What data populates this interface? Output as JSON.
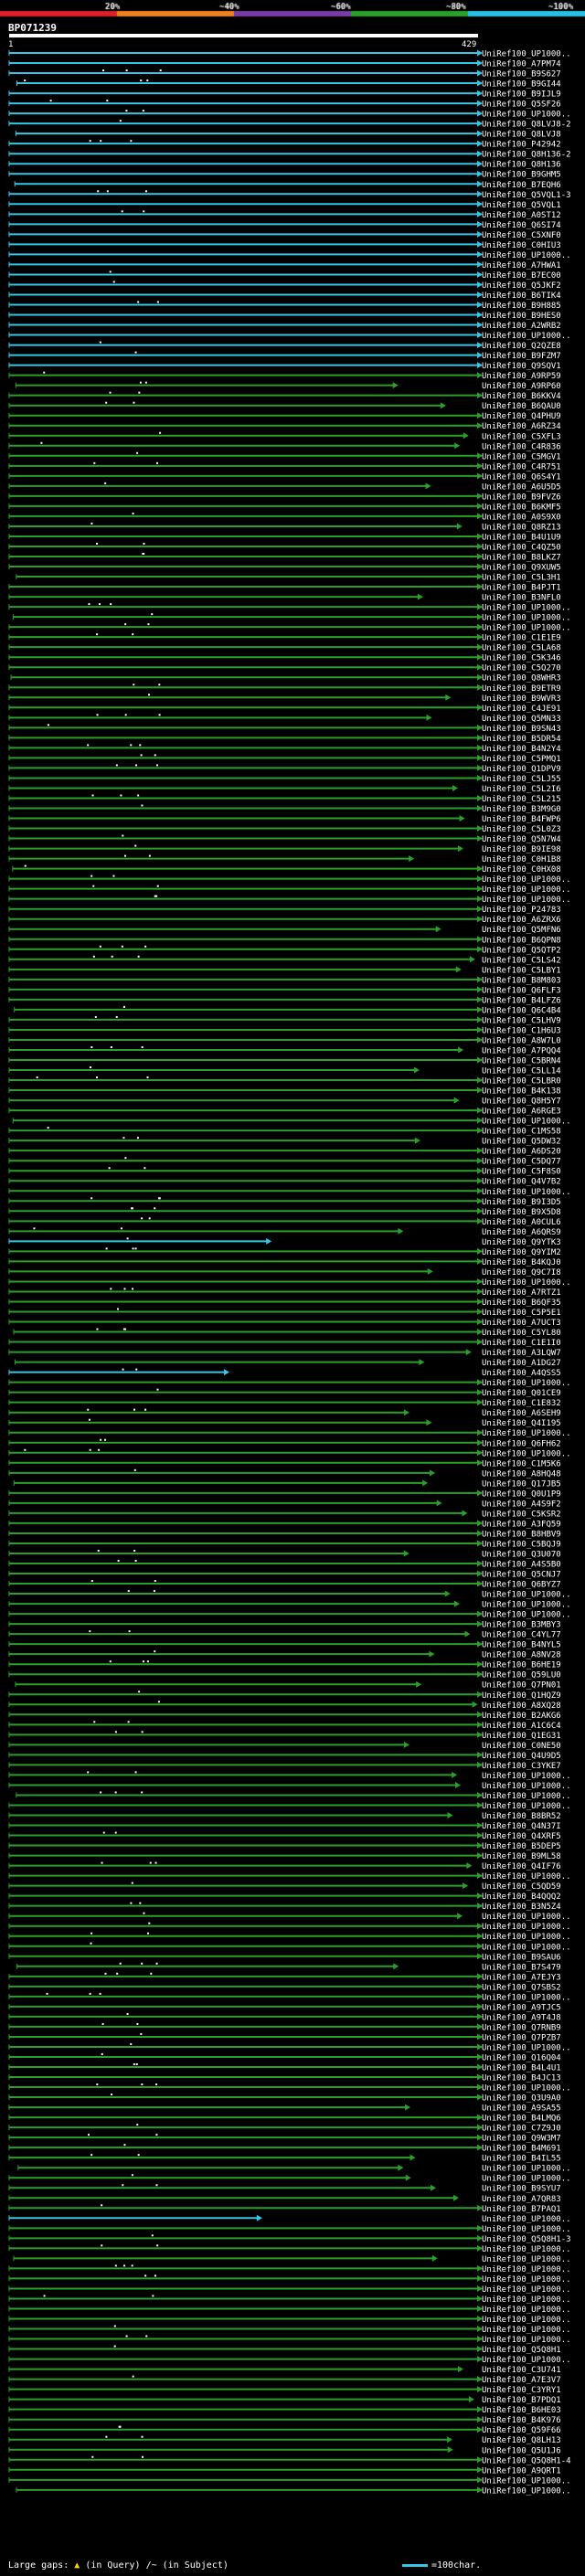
{
  "title": "BP071239",
  "legend": {
    "ticks": [
      "20%",
      "~40%",
      "~60%",
      "~80%",
      "~100%"
    ],
    "colors": [
      "#e01e2a",
      "#f07f1e",
      "#7b3ba6",
      "#2aa02a",
      "#28bfe3"
    ]
  },
  "query_range": {
    "start_label": "1",
    "end_label": "429",
    "length": 429
  },
  "footer": {
    "gaps_label": "Large gaps:",
    "gaps_query": "(in Query)",
    "gaps_subject": "/~ (in Subject)",
    "scale_label": "=100char."
  },
  "chart_data": {
    "type": "alignment-overview",
    "title": "BP071239",
    "query_length": 429,
    "hits": [
      "UniRef100_UP1000..",
      "UniRef100_A7PM74",
      "UniRef100_B9S627",
      "UniRef100_B9GI44",
      "UniRef100_B9IJL9",
      "UniRef100_Q5SF26",
      "UniRef100_UP1000..",
      "UniRef100_Q8LVJ8-2",
      "UniRef100_Q8LVJ8",
      "UniRef100_P42942",
      "UniRef100_Q8H136-2",
      "UniRef100_Q8H136",
      "UniRef100_B9GHM5",
      "UniRef100_B7EQH6",
      "UniRef100_Q5VQL1-3",
      "UniRef100_Q5VQL1",
      "UniRef100_A0ST12",
      "UniRef100_Q6SI74",
      "UniRef100_C5XNF0",
      "UniRef100_C0HIU3",
      "UniRef100_UP1000..",
      "UniRef100_A7HWA1",
      "UniRef100_B7EC00",
      "UniRef100_Q5JKF2",
      "UniRef100_B6TIK4",
      "UniRef100_B9H885",
      "UniRef100_B9HES0",
      "UniRef100_A2WRB2",
      "UniRef100_UP1000..",
      "UniRef100_Q2QZE8",
      "UniRef100_B9FZM7",
      "UniRef100_Q9SQV1",
      "UniRef100_A9RP59",
      "UniRef100_A9RP60",
      "UniRef100_B6KKV4",
      "UniRef100_B6QAU0",
      "UniRef100_Q4PHU9",
      "UniRef100_A6RZ34",
      "UniRef100_C5XFL3",
      "UniRef100_C4R836",
      "UniRef100_C5MGV1",
      "UniRef100_C4R751",
      "UniRef100_Q6S4Y1",
      "UniRef100_A6U5D5",
      "UniRef100_B9FVZ6",
      "UniRef100_B6KMF5",
      "UniRef100_A0S9X0",
      "UniRef100_Q8RZ13",
      "UniRef100_B4U1U9",
      "UniRef100_C4QZ50",
      "UniRef100_B8LKZ7",
      "UniRef100_Q9XUW5",
      "UniRef100_C5L3H1",
      "UniRef100_B4PJT1",
      "UniRef100_B3NFL0",
      "UniRef100_UP1000..",
      "UniRef100_UP1000..",
      "UniRef100_UP1000..",
      "UniRef100_C1E1E9",
      "UniRef100_C5LA68",
      "UniRef100_C5K346",
      "UniRef100_C5Q270",
      "UniRef100_Q8WHR3",
      "UniRef100_B9ETR9",
      "UniRef100_B9WVR3",
      "UniRef100_C4JE91",
      "UniRef100_Q5MN33",
      "UniRef100_B9SN43",
      "UniRef100_B5DR54",
      "UniRef100_B4N2Y4",
      "UniRef100_C5PMQ1",
      "UniRef100_Q1DPV9",
      "UniRef100_C5LJ55",
      "UniRef100_C5L2I6",
      "UniRef100_C5L215",
      "UniRef100_B3M9G0",
      "UniRef100_B4FWP6",
      "UniRef100_C5L0Z3",
      "UniRef100_Q5N7W4",
      "UniRef100_B9IE98",
      "UniRef100_C0H1B8",
      "UniRef100_C0HX08",
      "UniRef100_UP1000..",
      "UniRef100_UP1000..",
      "UniRef100_UP1000..",
      "UniRef100_P24783",
      "UniRef100_A6ZRX6",
      "UniRef100_Q5MFN6",
      "UniRef100_B6QPN8",
      "UniRef100_Q5QTP2",
      "UniRef100_C5LS42",
      "UniRef100_C5LBY1",
      "UniRef100_B8M803",
      "UniRef100_Q6FLF3",
      "UniRef100_B4LFZ6",
      "UniRef100_Q6C4B4",
      "UniRef100_C5LHV9",
      "UniRef100_C1H6U3",
      "UniRef100_A8W7L0",
      "UniRef100_A7PQQ4",
      "UniRef100_C5BRN4",
      "UniRef100_C5LL14",
      "UniRef100_C5LBR0",
      "UniRef100_B4K138",
      "UniRef100_Q8H5Y7",
      "UniRef100_A6RGE3",
      "UniRef100_UP1000..",
      "UniRef100_C1MS58",
      "UniRef100_Q5DW32",
      "UniRef100_A6DS20",
      "UniRef100_C5DQ77",
      "UniRef100_C5F8S0",
      "UniRef100_Q4V7B2",
      "UniRef100_UP1000..",
      "UniRef100_B9I3D5",
      "UniRef100_B9X5D8",
      "UniRef100_A0CUL6",
      "UniRef100_A6QRS9",
      "UniRef100_Q9YTK3",
      "UniRef100_Q9YIM2",
      "UniRef100_B4KQJ0",
      "UniRef100_Q9C7I8",
      "UniRef100_UP1000..",
      "UniRef100_A7RTZ1",
      "UniRef100_B6QF35",
      "UniRef100_C5P5E1",
      "UniRef100_A7UCT3",
      "UniRef100_C5YL80",
      "UniRef100_C1E1I0",
      "UniRef100_A3LQW7",
      "UniRef100_A1DG27",
      "UniRef100_A4QSS5",
      "UniRef100_UP1000..",
      "UniRef100_Q01CE9",
      "UniRef100_C1E832",
      "UniRef100_A6SEH9",
      "UniRef100_Q4I195",
      "UniRef100_UP1000..",
      "UniRef100_Q6FH62",
      "UniRef100_UP1000..",
      "UniRef100_C1M5K6",
      "UniRef100_A8HQ48",
      "UniRef100_Q17JB5",
      "UniRef100_Q0U1P9",
      "UniRef100_A4S9F2",
      "UniRef100_C5KSR2",
      "UniRef100_A3FQ59",
      "UniRef100_B8HBV9",
      "UniRef100_C5BQJ9",
      "UniRef100_Q3U070",
      "UniRef100_A4S5B0",
      "UniRef100_Q5CNJ7",
      "UniRef100_Q6BYZ7",
      "UniRef100_UP1000..",
      "UniRef100_UP1000..",
      "UniRef100_UP1000..",
      "UniRef100_B3MBY3",
      "UniRef100_C4YL77",
      "UniRef100_B4NYL5",
      "UniRef100_A8NV28",
      "UniRef100_B6HE19",
      "UniRef100_Q59LU0",
      "UniRef100_Q7PN01",
      "UniRef100_Q1HQZ9",
      "UniRef100_A8XQ28",
      "UniRef100_B2AKG6",
      "UniRef100_A1C6C4",
      "UniRef100_Q1EG31",
      "UniRef100_C0NE50",
      "UniRef100_Q4U9D5",
      "UniRef100_C3YKE7",
      "UniRef100_UP1000..",
      "UniRef100_UP1000..",
      "UniRef100_UP1000..",
      "UniRef100_UP1000..",
      "UniRef100_B8BR52",
      "UniRef100_Q4N37I",
      "UniRef100_Q4XRF5",
      "UniRef100_B5DEP5",
      "UniRef100_B9ML58",
      "UniRef100_Q4IF76",
      "UniRef100_UP1000..",
      "UniRef100_C5QD59",
      "UniRef100_B4QQQ2",
      "UniRef100_B3N5Z4",
      "UniRef100_UP1000..",
      "UniRef100_UP1000..",
      "UniRef100_UP1000..",
      "UniRef100_UP1000..",
      "UniRef100_B9SAU6",
      "UniRef100_B7S479",
      "UniRef100_A7EJY3",
      "UniRef100_Q7SBS2",
      "UniRef100_UP1000..",
      "UniRef100_A9TJC5",
      "UniRef100_A9T4J8",
      "UniRef100_Q7RNB9",
      "UniRef100_Q7PZB7",
      "UniRef100_UP1000..",
      "UniRef100_Q16Q04",
      "UniRef100_B4L4U1",
      "UniRef100_B4JC13",
      "UniRef100_UP1000..",
      "UniRef100_Q3U9A0",
      "UniRef100_A9SA55",
      "UniRef100_B4LMQ6",
      "UniRef100_C7Z9J0",
      "UniRef100_Q9W3M7",
      "UniRef100_B4M691",
      "UniRef100_B4IL55",
      "UniRef100_UP1000..",
      "UniRef100_UP1000..",
      "UniRef100_B9SYU7",
      "UniRef100_A7QR83",
      "UniRef100_B7PAQ1",
      "UniRef100_UP1000..",
      "UniRef100_UP1000..",
      "UniRef100_Q5Q8H1-3",
      "UniRef100_UP1000..",
      "UniRef100_UP1000..",
      "UniRef100_UP1000..",
      "UniRef100_UP1000..",
      "UniRef100_UP1000..",
      "UniRef100_UP1000..",
      "UniRef100_UP1000..",
      "UniRef100_UP1000..",
      "UniRef100_UP1000..",
      "UniRef100_UP1000..",
      "UniRef100_Q5Q8H1",
      "UniRef100_UP1000..",
      "UniRef100_C3U741",
      "UniRef100_A7E3V7",
      "UniRef100_C3YRY1",
      "UniRef100_B7PDQ1",
      "UniRef100_B6HE03",
      "UniRef100_B4K976",
      "UniRef100_Q59F66",
      "UniRef100_Q8LH13",
      "UniRef100_Q5U1J6",
      "UniRef100_Q5Q8H1-4",
      "UniRef100_A9QRT1",
      "UniRef100_UP1000..",
      "UniRef100_UP1000.."
    ]
  }
}
